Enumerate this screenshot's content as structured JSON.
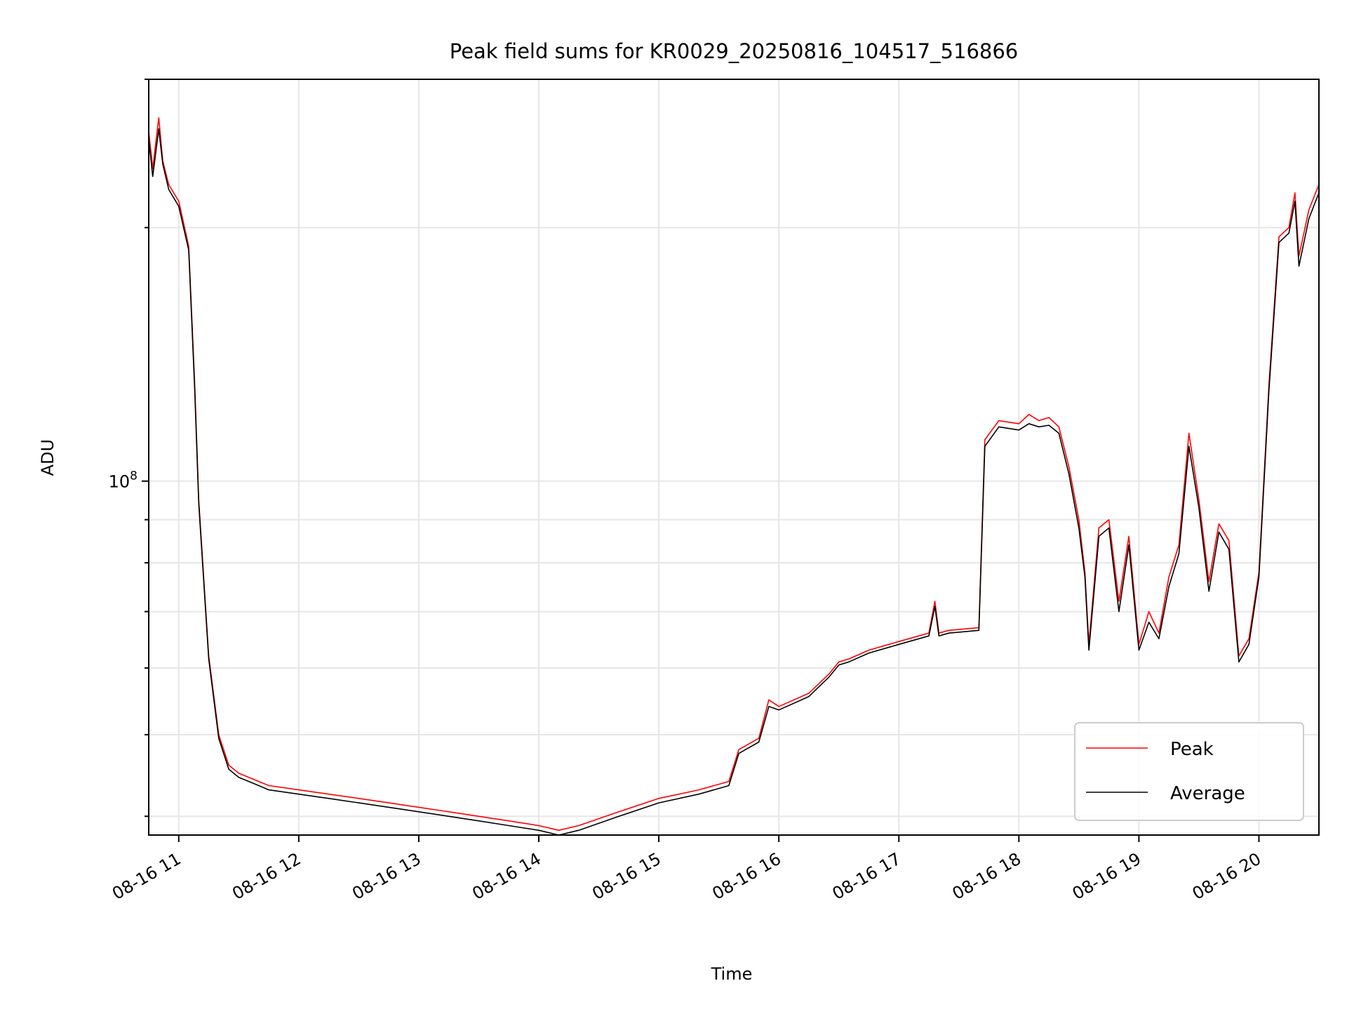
{
  "chart_data": {
    "type": "line",
    "title": "Peak field sums for KR0029_20250816_104517_516866",
    "xlabel": "Time",
    "ylabel": "ADU",
    "x_tick_labels": [
      "08-16 11",
      "08-16 12",
      "08-16 13",
      "08-16 14",
      "08-16 15",
      "08-16 16",
      "08-16 17",
      "08-16 18",
      "08-16 19",
      "08-16 20"
    ],
    "y_tick_labels": [
      {
        "base": "10",
        "exp": "8"
      }
    ],
    "y_scale": "log",
    "xlim": [
      "08-16 10:45",
      "08-16 20:30"
    ],
    "ylim": [
      38000000,
      300000000
    ],
    "grid": true,
    "legend_position": "lower right",
    "x": [
      "08-16 10:45",
      "08-16 10:47",
      "08-16 10:50",
      "08-16 10:52",
      "08-16 10:55",
      "08-16 11:00",
      "08-16 11:05",
      "08-16 11:08",
      "08-16 11:10",
      "08-16 11:15",
      "08-16 11:20",
      "08-16 11:25",
      "08-16 11:30",
      "08-16 11:35",
      "08-16 11:40",
      "08-16 11:45",
      "08-16 12:00",
      "08-16 12:15",
      "08-16 12:30",
      "08-16 12:45",
      "08-16 13:00",
      "08-16 13:15",
      "08-16 13:30",
      "08-16 13:45",
      "08-16 14:00",
      "08-16 14:10",
      "08-16 14:20",
      "08-16 14:40",
      "08-16 15:00",
      "08-16 15:20",
      "08-16 15:35",
      "08-16 15:40",
      "08-16 15:50",
      "08-16 15:55",
      "08-16 16:00",
      "08-16 16:15",
      "08-16 16:25",
      "08-16 16:30",
      "08-16 16:35",
      "08-16 16:45",
      "08-16 17:00",
      "08-16 17:15",
      "08-16 17:18",
      "08-16 17:20",
      "08-16 17:25",
      "08-16 17:40",
      "08-16 17:43",
      "08-16 17:50",
      "08-16 18:00",
      "08-16 18:05",
      "08-16 18:10",
      "08-16 18:15",
      "08-16 18:20",
      "08-16 18:25",
      "08-16 18:30",
      "08-16 18:33",
      "08-16 18:35",
      "08-16 18:40",
      "08-16 18:45",
      "08-16 18:50",
      "08-16 18:55",
      "08-16 19:00",
      "08-16 19:05",
      "08-16 19:10",
      "08-16 19:15",
      "08-16 19:20",
      "08-16 19:25",
      "08-16 19:30",
      "08-16 19:35",
      "08-16 19:40",
      "08-16 19:45",
      "08-16 19:50",
      "08-16 19:55",
      "08-16 20:00",
      "08-16 20:05",
      "08-16 20:10",
      "08-16 20:15",
      "08-16 20:18",
      "08-16 20:20",
      "08-16 20:25",
      "08-16 20:30"
    ],
    "series": [
      {
        "name": "Peak",
        "color": "#ff0000",
        "values": [
          260000000,
          235000000,
          270000000,
          240000000,
          225000000,
          215000000,
          190000000,
          130000000,
          95000000,
          62000000,
          50000000,
          46000000,
          45000000,
          44500000,
          44000000,
          43500000,
          43000000,
          42500000,
          42000000,
          41500000,
          41000000,
          40500000,
          40000000,
          39500000,
          39000000,
          38500000,
          39000000,
          40500000,
          42000000,
          43000000,
          44000000,
          48000000,
          49500000,
          55000000,
          54000000,
          56000000,
          59000000,
          61000000,
          61500000,
          63000000,
          64500000,
          66000000,
          72000000,
          66000000,
          66500000,
          67000000,
          112000000,
          118000000,
          117000000,
          120000000,
          118000000,
          119000000,
          116000000,
          104000000,
          90000000,
          78000000,
          64000000,
          88000000,
          90000000,
          72000000,
          86000000,
          64000000,
          70000000,
          66000000,
          77000000,
          84000000,
          114000000,
          95000000,
          76000000,
          89000000,
          85000000,
          62000000,
          65000000,
          78000000,
          130000000,
          195000000,
          200000000,
          220000000,
          185000000,
          210000000,
          225000000
        ]
      },
      {
        "name": "Average",
        "color": "#000000",
        "values": [
          255000000,
          230000000,
          262000000,
          238000000,
          222000000,
          212000000,
          188000000,
          128000000,
          94000000,
          61500000,
          49500000,
          45500000,
          44500000,
          44000000,
          43500000,
          43000000,
          42500000,
          42000000,
          41500000,
          41000000,
          40500000,
          40000000,
          39500000,
          39000000,
          38500000,
          38000000,
          38500000,
          40000000,
          41500000,
          42500000,
          43500000,
          47500000,
          49000000,
          54000000,
          53500000,
          55500000,
          58500000,
          60500000,
          61000000,
          62500000,
          64000000,
          65500000,
          71000000,
          65500000,
          66000000,
          66500000,
          110000000,
          116000000,
          115000000,
          117000000,
          116000000,
          116500000,
          114000000,
          102000000,
          88000000,
          77000000,
          63000000,
          86000000,
          88000000,
          70000000,
          84000000,
          63000000,
          68000000,
          65000000,
          75000000,
          82000000,
          110000000,
          93000000,
          74000000,
          87000000,
          83000000,
          61000000,
          64000000,
          77000000,
          128000000,
          192000000,
          197000000,
          215000000,
          180000000,
          205000000,
          220000000
        ]
      }
    ]
  }
}
